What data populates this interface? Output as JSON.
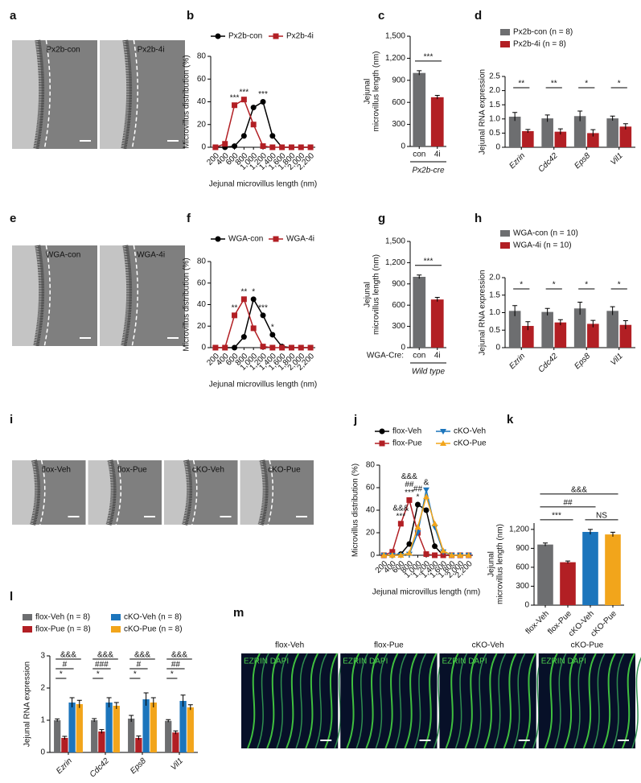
{
  "panel_letters": [
    "a",
    "b",
    "c",
    "d",
    "e",
    "f",
    "g",
    "h",
    "i",
    "j",
    "k",
    "l",
    "m"
  ],
  "micrographs": [
    {
      "style": "em",
      "labels": [
        "Px2b-con",
        "Px2b-4i"
      ]
    },
    {
      "style": "em",
      "labels": [
        "WGA-con",
        "WGA-4i"
      ]
    },
    {
      "style": "em",
      "labels": [
        "flox-Veh",
        "flox-Pue",
        "cKO-Veh",
        "cKO-Pue"
      ]
    },
    {
      "style": "fluorescence",
      "stain": "EZRIN DAPI",
      "labels": [
        "flox-Veh",
        "flox-Pue",
        "cKO-Veh",
        "cKO-Pue"
      ]
    }
  ],
  "chart_data": [
    {
      "type": "line",
      "xlabel": "Jejunal microvillus length (nm)",
      "ylabel": [
        "Microvillus distribution (%)"
      ],
      "categories": [
        "200",
        "400",
        "600",
        "800",
        "1,000",
        "1,200",
        "1,400",
        "1,600",
        "1,800",
        "2,000",
        "2,200"
      ],
      "series": [
        {
          "name": "Px2b-con",
          "color": "#000000",
          "marker": "circle",
          "values": [
            0,
            0,
            1,
            10,
            35,
            40,
            10,
            0,
            0,
            0,
            0
          ]
        },
        {
          "name": "Px2b-4i",
          "color": "#b21f24",
          "marker": "square",
          "values": [
            0,
            3,
            37,
            42,
            20,
            1,
            0,
            0,
            0,
            0,
            0
          ]
        }
      ],
      "annotations": [
        {
          "lines": [
            "***"
          ],
          "at": 2
        },
        {
          "lines": [
            "***"
          ],
          "at": 3
        },
        {
          "lines": [
            "***"
          ],
          "at": 5
        }
      ],
      "ylim": [
        0,
        80
      ],
      "yticks": [
        0,
        20,
        40,
        60,
        80
      ]
    },
    {
      "type": "bar",
      "ylabel": [
        "Jejunal",
        "microvillus length (nm)"
      ],
      "categories": [
        "con",
        "4i"
      ],
      "values": [
        1000,
        670
      ],
      "errors": [
        30,
        25
      ],
      "colors": [
        "#6d6e70",
        "#b21f24"
      ],
      "comparisons": [
        {
          "text": "***",
          "from": 0,
          "to": 1
        }
      ],
      "group_label": "Px2b-cre",
      "ylim": [
        0,
        1500
      ],
      "yticks": [
        0,
        300,
        600,
        900,
        {
          "value": 1200,
          "label": "1,200"
        },
        {
          "value": 1500,
          "label": "1,500"
        }
      ]
    },
    {
      "type": "grouped_bar",
      "ylabel": [
        "Jejunal RNA expression"
      ],
      "categories": [
        "Ezrin",
        "Cdc42",
        "Eps8",
        "Vil1"
      ],
      "series": [
        {
          "name": "Px2b-con (n = 8)",
          "color": "#6d6e70",
          "values": [
            1.08,
            1.02,
            1.1,
            1.02
          ],
          "errors": [
            0.15,
            0.12,
            0.18,
            0.08
          ]
        },
        {
          "name": "Px2b-4i (n = 8)",
          "color": "#b21f24",
          "values": [
            0.57,
            0.55,
            0.5,
            0.73
          ],
          "errors": [
            0.06,
            0.1,
            0.12,
            0.1
          ]
        }
      ],
      "comparisons": [
        [
          "**"
        ],
        [
          "**"
        ],
        [
          "*"
        ],
        [
          "*"
        ]
      ],
      "ylim": [
        0,
        2.5
      ],
      "yticks": [
        0,
        0.5,
        {
          "value": 1,
          "label": "1.0"
        },
        1.5,
        {
          "value": 2,
          "label": "2.0"
        },
        2.5
      ]
    },
    {
      "type": "line",
      "xlabel": "Jejunal microvillus length (nm)",
      "ylabel": [
        "Microvillus distribution (%)"
      ],
      "categories": [
        "200",
        "400",
        "600",
        "800",
        "1,000",
        "1,200",
        "1,400",
        "1,600",
        "1,800",
        "2,000",
        "2,200"
      ],
      "series": [
        {
          "name": "WGA-con",
          "color": "#000000",
          "marker": "circle",
          "values": [
            0,
            0,
            0,
            10,
            45,
            30,
            12,
            1,
            0,
            0,
            0
          ]
        },
        {
          "name": "WGA-4i",
          "color": "#b21f24",
          "marker": "square",
          "values": [
            0,
            0,
            30,
            45,
            18,
            1,
            0,
            0,
            0,
            0,
            0
          ]
        }
      ],
      "annotations": [
        {
          "lines": [
            "**"
          ],
          "at": 2
        },
        {
          "lines": [
            "**"
          ],
          "at": 3
        },
        {
          "lines": [
            "*"
          ],
          "at": 4
        },
        {
          "lines": [
            "***"
          ],
          "at": 5
        },
        {
          "lines": [
            "*"
          ],
          "at": 6
        }
      ],
      "ylim": [
        0,
        80
      ],
      "yticks": [
        0,
        20,
        40,
        60,
        80
      ]
    },
    {
      "type": "bar",
      "ylabel": [
        "Jejunal",
        "microvillus length (nm)"
      ],
      "categories": [
        "con",
        "4i"
      ],
      "values": [
        1000,
        680
      ],
      "errors": [
        25,
        30
      ],
      "colors": [
        "#6d6e70",
        "#b21f24"
      ],
      "comparisons": [
        {
          "text": "***",
          "from": 0,
          "to": 1
        }
      ],
      "row_label": "WGA-Cre:",
      "group_label": "Wild type",
      "ylim": [
        0,
        1500
      ],
      "yticks": [
        0,
        300,
        600,
        900,
        {
          "value": 1200,
          "label": "1,200"
        },
        {
          "value": 1500,
          "label": "1,500"
        }
      ]
    },
    {
      "type": "grouped_bar",
      "ylabel": [
        "Jejunal RNA expression"
      ],
      "categories": [
        "Ezrin",
        "Cdc42",
        "Eps8",
        "Vil1"
      ],
      "series": [
        {
          "name": "WGA-con (n = 10)",
          "color": "#6d6e70",
          "values": [
            1.05,
            1.02,
            1.12,
            1.05
          ],
          "errors": [
            0.15,
            0.1,
            0.18,
            0.12
          ]
        },
        {
          "name": "WGA-4i (n = 10)",
          "color": "#b21f24",
          "values": [
            0.62,
            0.72,
            0.68,
            0.65
          ],
          "errors": [
            0.12,
            0.08,
            0.1,
            0.12
          ]
        }
      ],
      "comparisons": [
        [
          "*"
        ],
        [
          "*"
        ],
        [
          "*"
        ],
        [
          "*"
        ]
      ],
      "ylim": [
        0,
        2.0
      ],
      "yticks": [
        0,
        0.5,
        {
          "value": 1,
          "label": "1.0"
        },
        1.5,
        {
          "value": 2,
          "label": "2.0"
        }
      ]
    },
    {
      "type": "line",
      "xlabel": "Jejunal microvillus length (nm)",
      "ylabel": [
        "Microvillus distribution (%)"
      ],
      "categories": [
        "200",
        "400",
        "600",
        "800",
        "1,000",
        "1,200",
        "1,400",
        "1,600",
        "1,800",
        "2,000",
        "2,200"
      ],
      "series": [
        {
          "name": "flox-Veh",
          "color": "#000000",
          "marker": "circle",
          "values": [
            0,
            0,
            1,
            10,
            45,
            40,
            8,
            0,
            0,
            0,
            0
          ]
        },
        {
          "name": "flox-Pue",
          "color": "#b21f24",
          "marker": "square",
          "values": [
            0,
            3,
            28,
            49,
            20,
            1,
            0,
            0,
            0,
            0,
            0
          ]
        },
        {
          "name": "cKO-Veh",
          "color": "#1c75bc",
          "marker": "triangle-down",
          "values": [
            0,
            0,
            0,
            1,
            20,
            58,
            25,
            3,
            0,
            0,
            0
          ]
        },
        {
          "name": "cKO-Pue",
          "color": "#f2a51b",
          "marker": "triangle-up",
          "values": [
            0,
            0,
            0,
            2,
            25,
            52,
            28,
            4,
            0,
            0,
            0
          ]
        }
      ],
      "annotations": [
        {
          "lines": [
            "&&&",
            "***"
          ],
          "at": 2
        },
        {
          "lines": [
            "&&&",
            "##",
            "***"
          ],
          "at": 3
        },
        {
          "lines": [
            "##",
            "*"
          ],
          "at": 4
        },
        {
          "lines": [
            "&"
          ],
          "at": 5
        }
      ],
      "ylim": [
        0,
        80
      ],
      "yticks": [
        0,
        20,
        40,
        60,
        80
      ]
    },
    {
      "type": "bar",
      "ylabel": [
        "Jejunal",
        "microvillus length (nm)"
      ],
      "categories": [
        "flox-Veh",
        "flox-Pue",
        "cKO-Veh",
        "cKO-Pue"
      ],
      "values": [
        960,
        680,
        1160,
        1120
      ],
      "errors": [
        25,
        20,
        40,
        35
      ],
      "colors": [
        "#6d6e70",
        "#b21f24",
        "#1c75bc",
        "#f2a51b"
      ],
      "comparisons": [
        {
          "text": "***",
          "from": 0,
          "to": 1
        },
        {
          "text": "NS",
          "from": 2,
          "to": 3
        },
        {
          "text": "##",
          "from": 0,
          "to": 2
        },
        {
          "text": "&&&",
          "from": 0,
          "to": 3
        }
      ],
      "ylim": [
        0,
        1300
      ],
      "yticks": [
        0,
        300,
        600,
        900,
        {
          "value": 1200,
          "label": "1,200"
        }
      ]
    },
    {
      "type": "grouped_bar",
      "ylabel": [
        "Jejunal RNA expression"
      ],
      "categories": [
        "Ezrin",
        "Cdc42",
        "Eps8",
        "Vil1"
      ],
      "series": [
        {
          "name": "flox-Veh (n = 8)",
          "color": "#6d6e70",
          "values": [
            1.0,
            1.0,
            1.05,
            0.98
          ],
          "errors": [
            0.04,
            0.05,
            0.1,
            0.04
          ]
        },
        {
          "name": "flox-Pue (n = 8)",
          "color": "#b21f24",
          "values": [
            0.45,
            0.65,
            0.45,
            0.62
          ],
          "errors": [
            0.05,
            0.06,
            0.06,
            0.05
          ]
        },
        {
          "name": "cKO-Veh (n = 8)",
          "color": "#1c75bc",
          "values": [
            1.55,
            1.55,
            1.65,
            1.6
          ],
          "errors": [
            0.15,
            0.15,
            0.2,
            0.18
          ]
        },
        {
          "name": "cKO-Pue (n = 8)",
          "color": "#f2a51b",
          "values": [
            1.5,
            1.45,
            1.55,
            1.4
          ],
          "errors": [
            0.12,
            0.1,
            0.15,
            0.08
          ]
        }
      ],
      "comparisons": [
        [
          "*",
          "#",
          "&&&"
        ],
        [
          "*",
          "###",
          "&&&"
        ],
        [
          "*",
          "#",
          "&&&"
        ],
        [
          "*",
          "##",
          "&&&"
        ]
      ],
      "ylim": [
        0,
        3
      ],
      "yticks": [
        0,
        1,
        2,
        3
      ]
    }
  ]
}
